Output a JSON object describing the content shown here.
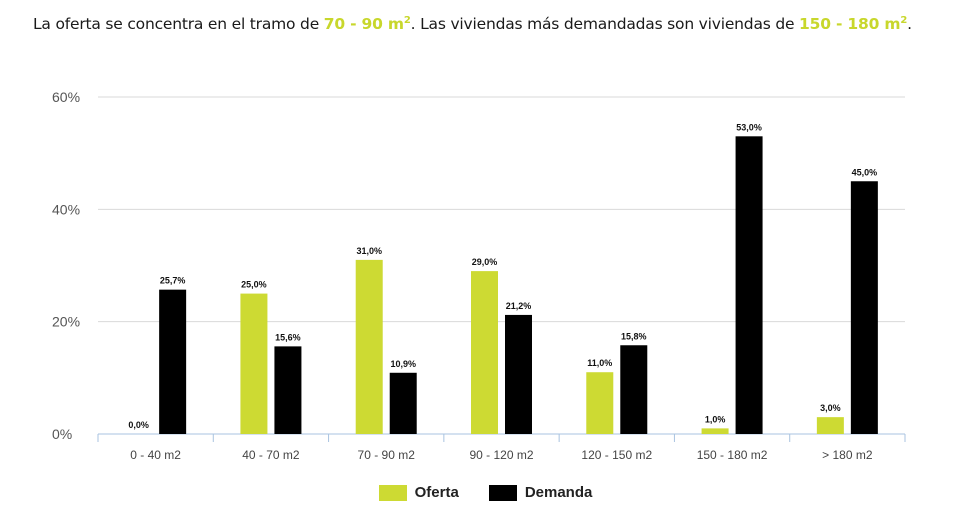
{
  "headline": {
    "part1": "La oferta se concentra en el tramo de ",
    "hl1": "70 - 90 m",
    "sup1": "2",
    "part2": ". Las viviendas más demandadas son viviendas de ",
    "hl2": "150 - 180 m",
    "sup2": "2",
    "part3": "."
  },
  "colors": {
    "oferta": "#cdda33",
    "demanda": "#000000",
    "highlight": "#c8d72c",
    "grid": "#d9d9d9",
    "axis": "#a9c3e0"
  },
  "chart_data": {
    "type": "bar",
    "title": "",
    "xlabel": "",
    "ylabel": "",
    "ylim": [
      0,
      60
    ],
    "yticks": [
      "0%",
      "20%",
      "40%",
      "60%"
    ],
    "yticks_values": [
      0,
      20,
      40,
      60
    ],
    "categories": [
      "0 - 40 m2",
      "40 - 70 m2",
      "70 - 90 m2",
      "90 - 120 m2",
      "120 - 150 m2",
      "150 - 180 m2",
      "> 180 m2"
    ],
    "series": [
      {
        "name": "Oferta",
        "values": [
          0.0,
          25.0,
          31.0,
          29.0,
          11.0,
          1.0,
          3.0
        ],
        "labels": [
          "0,0%",
          "25,0%",
          "31,0%",
          "29,0%",
          "11,0%",
          "1,0%",
          "3,0%"
        ]
      },
      {
        "name": "Demanda",
        "values": [
          25.7,
          15.6,
          10.9,
          21.2,
          15.8,
          53.0,
          45.0
        ],
        "labels": [
          "25,7%",
          "15,6%",
          "10,9%",
          "21,2%",
          "15,8%",
          "53,0%",
          "45,0%"
        ]
      }
    ],
    "legend_position": "bottom-center",
    "grid": true
  }
}
